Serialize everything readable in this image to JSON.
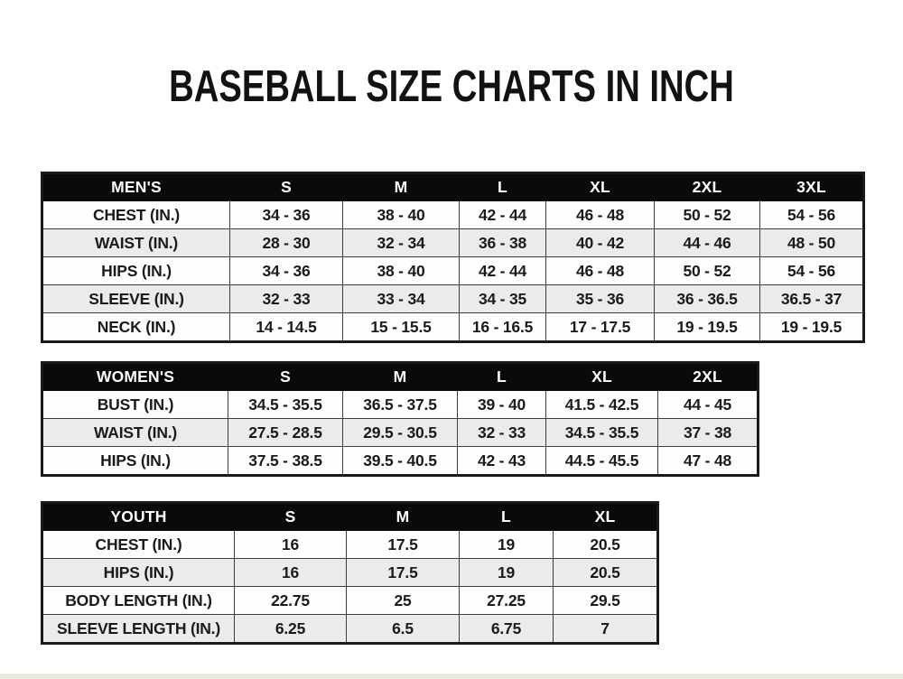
{
  "title": "BASEBALL SIZE CHARTS IN INCH",
  "units": "inches",
  "colors": {
    "page_background": "#ffffff",
    "header_bg": "#0a0a0a",
    "header_text": "#ffffff",
    "row_bg": "#fefefe",
    "row_alt_bg": "#ebebeb",
    "border": "#1a1a1a",
    "text": "#1b1b1b"
  },
  "chart_data": [
    {
      "type": "table",
      "name": "MEN'S",
      "header": [
        "MEN'S",
        "S",
        "M",
        "L",
        "XL",
        "2XL",
        "3XL"
      ],
      "rows": [
        [
          "CHEST (IN.)",
          "34 - 36",
          "38 - 40",
          "42 - 44",
          "46 - 48",
          "50 - 52",
          "54 - 56"
        ],
        [
          "WAIST (IN.)",
          "28 - 30",
          "32 - 34",
          "36 - 38",
          "40 - 42",
          "44 - 46",
          "48 - 50"
        ],
        [
          "HIPS (IN.)",
          "34 - 36",
          "38 - 40",
          "42 - 44",
          "46 - 48",
          "50 - 52",
          "54 - 56"
        ],
        [
          "SLEEVE (IN.)",
          "32 - 33",
          "33 - 34",
          "34 - 35",
          "35 - 36",
          "36 - 36.5",
          "36.5 - 37"
        ],
        [
          "NECK (IN.)",
          "14 - 14.5",
          "15 - 15.5",
          "16 - 16.5",
          "17 - 17.5",
          "19 - 19.5",
          "19 - 19.5"
        ]
      ]
    },
    {
      "type": "table",
      "name": "WOMEN'S",
      "header": [
        "WOMEN'S",
        "S",
        "M",
        "L",
        "XL",
        "2XL"
      ],
      "rows": [
        [
          "BUST (IN.)",
          "34.5 - 35.5",
          "36.5 - 37.5",
          "39 - 40",
          "41.5 - 42.5",
          "44 - 45"
        ],
        [
          "WAIST (IN.)",
          "27.5 - 28.5",
          "29.5 - 30.5",
          "32 - 33",
          "34.5 - 35.5",
          "37 - 38"
        ],
        [
          "HIPS (IN.)",
          "37.5 - 38.5",
          "39.5 - 40.5",
          "42 - 43",
          "44.5 - 45.5",
          "47 - 48"
        ]
      ]
    },
    {
      "type": "table",
      "name": "YOUTH",
      "header": [
        "YOUTH",
        "S",
        "M",
        "L",
        "XL"
      ],
      "rows": [
        [
          "CHEST (IN.)",
          "16",
          "17.5",
          "19",
          "20.5"
        ],
        [
          "HIPS (IN.)",
          "16",
          "17.5",
          "19",
          "20.5"
        ],
        [
          "BODY LENGTH (IN.)",
          "22.75",
          "25",
          "27.25",
          "29.5"
        ],
        [
          "SLEEVE LENGTH (IN.)",
          "6.25",
          "6.5",
          "6.75",
          "7"
        ]
      ]
    }
  ]
}
